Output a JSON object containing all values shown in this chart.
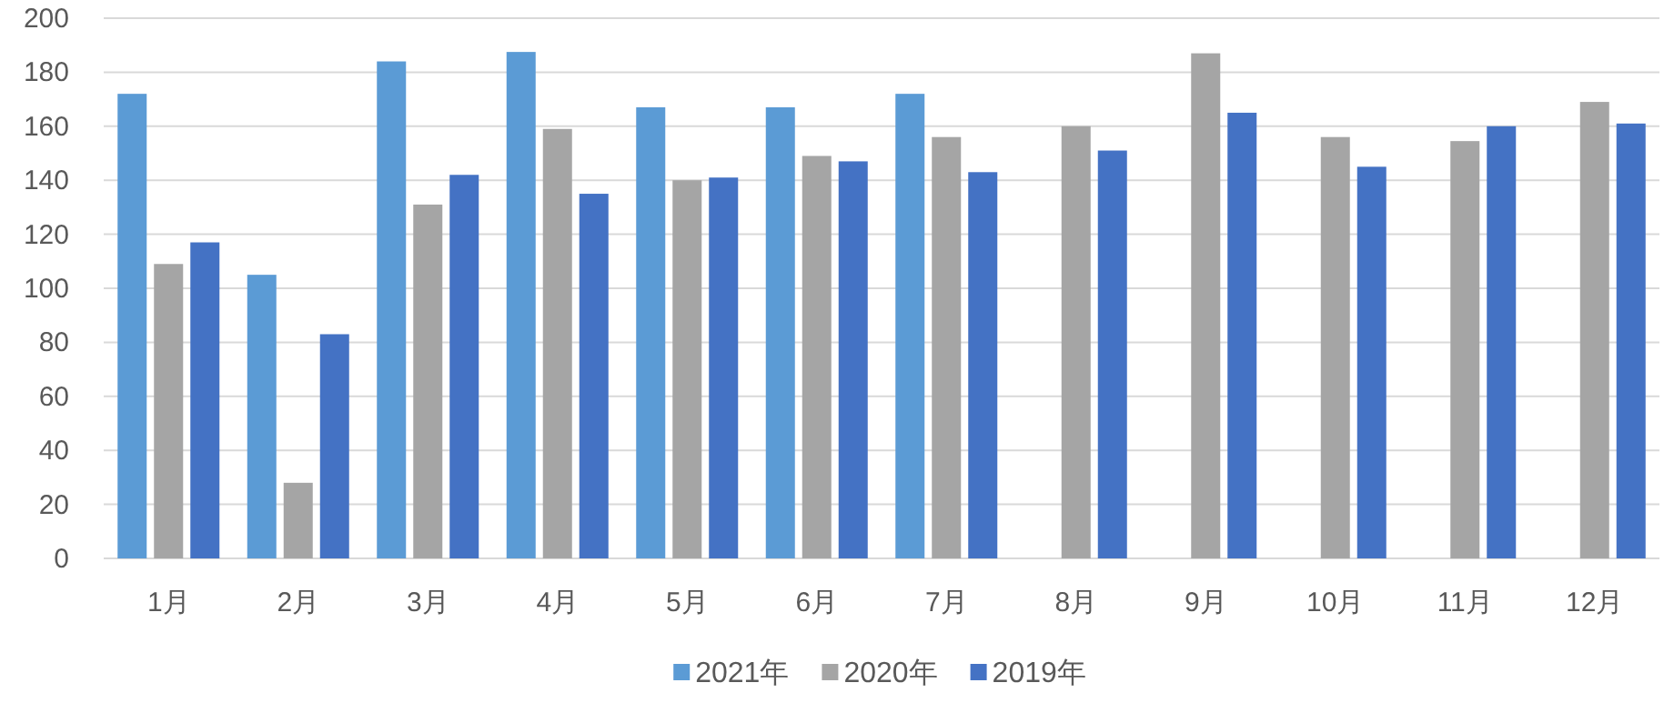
{
  "chart_data": {
    "type": "bar",
    "categories": [
      "1月",
      "2月",
      "3月",
      "4月",
      "5月",
      "6月",
      "7月",
      "8月",
      "9月",
      "10月",
      "11月",
      "12月"
    ],
    "series": [
      {
        "name": "2021年",
        "color": "#5b9bd5",
        "values": [
          172,
          105,
          184,
          187.5,
          167,
          167,
          172,
          null,
          null,
          null,
          null,
          null
        ]
      },
      {
        "name": "2020年",
        "color": "#a5a5a5",
        "values": [
          109,
          28,
          131,
          159,
          140,
          149,
          156,
          160,
          187,
          156,
          154.5,
          169
        ]
      },
      {
        "name": "2019年",
        "color": "#4472c4",
        "values": [
          117,
          83,
          142,
          135,
          141,
          147,
          143,
          151,
          165,
          145,
          160,
          161
        ]
      }
    ],
    "ylim": [
      0,
      200
    ],
    "yticks": [
      0,
      20,
      40,
      60,
      80,
      100,
      120,
      140,
      160,
      180,
      200
    ],
    "grid": "y",
    "legend": "bottom"
  }
}
